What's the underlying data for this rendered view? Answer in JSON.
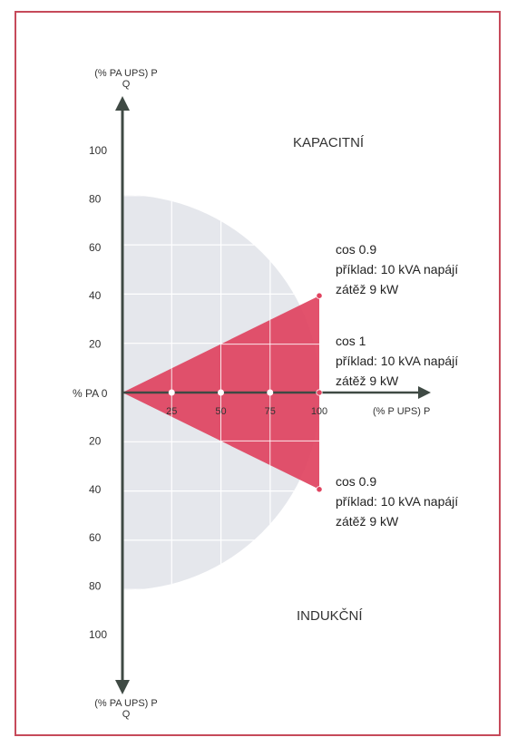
{
  "colors": {
    "frame": "#c64a5a",
    "region": "#e5e7ec",
    "triangle": "#e0435f",
    "axis": "#3f4a44",
    "grid": "#ffffff",
    "marker": "#e0435f",
    "text": "#222222"
  },
  "chart_data": {
    "type": "area",
    "axes": {
      "y_top_label_line1": "(% PA UPS) P",
      "y_top_label_line2": "Q",
      "y_bottom_label_line1": "(% PA UPS) P",
      "y_bottom_label_line2": "Q",
      "origin_label": "% PA 0",
      "x_label": "(% P UPS) P",
      "y_ticks_upper": [
        20,
        40,
        60,
        80,
        100
      ],
      "y_ticks_lower": [
        20,
        40,
        60,
        80,
        100
      ],
      "x_ticks": [
        25,
        50,
        75,
        100
      ],
      "xlim": [
        0,
        100
      ],
      "ylim": [
        -100,
        100
      ]
    },
    "regions": {
      "upper_label": "KAPACITNÍ",
      "lower_label": "INDUKČNÍ",
      "operating_region": {
        "shape": "half-disc",
        "radius_percent": 100
      }
    },
    "triangle_vertices": [
      [
        0,
        0
      ],
      [
        100,
        40
      ],
      [
        100,
        -40
      ]
    ],
    "points": [
      {
        "x": 100,
        "y": 40
      },
      {
        "x": 100,
        "y": 0
      },
      {
        "x": 100,
        "y": -40
      },
      {
        "x": 25,
        "y": 0
      },
      {
        "x": 50,
        "y": 0
      },
      {
        "x": 75,
        "y": 0
      }
    ],
    "annotations": [
      {
        "line1": "cos 0.9",
        "line2": "příklad: 10 kVA napájí",
        "line3": "zátěž 9 kW"
      },
      {
        "line1": "cos 1",
        "line2": "příklad: 10 kVA napájí",
        "line3": "zátěž 9 kW"
      },
      {
        "line1": "cos 0.9",
        "line2": "příklad: 10 kVA napájí",
        "line3": "zátěž 9 kW"
      }
    ]
  }
}
